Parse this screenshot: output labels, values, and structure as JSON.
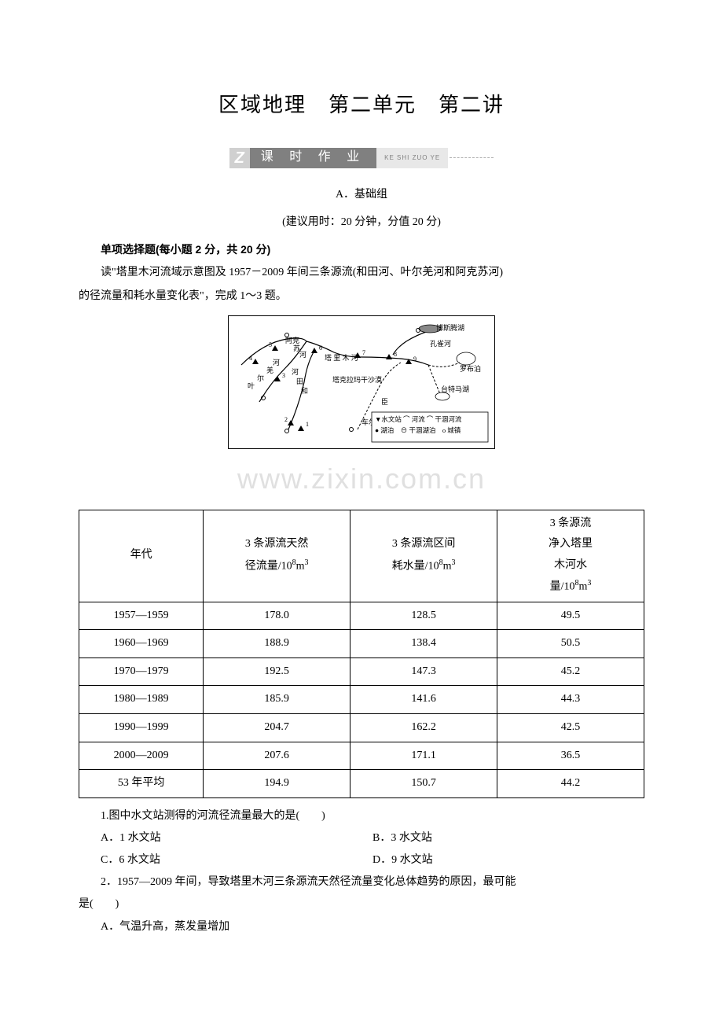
{
  "title": "区域地理　第二单元　第二讲",
  "banner": {
    "z": "Z",
    "text": "课 时 作 业",
    "pinyin": "KE SHI ZUO YE"
  },
  "group_label": "A．基础组",
  "timing": "(建议用时：20 分钟，分值 20 分)",
  "section_heading": "单项选择题(每小题 2 分，共 20 分)",
  "intro_line1": "读\"塔里木河流域示意图及 1957－2009 年间三条源流(和田河、叶尔羌河和阿克苏河)",
  "intro_line2_noindent": "的径流量和耗水量变化表\"，完成 1～3 题。",
  "watermark": "www.zixin.com.cn",
  "map_labels": {
    "bosteng": "博斯腾湖",
    "kongque": "孔雀河",
    "luobupo": "罗布泊",
    "aksu": "阿克",
    "aksu2": "苏",
    "aksu_river": "河",
    "tarim": "塔 里 木 河",
    "takla": "塔克拉玛干沙漠",
    "taitema": "台特马湖",
    "cheer": "车尔",
    "chen": "臣",
    "hetian": "河",
    "hetian2": "田",
    "hetian3": "和",
    "ye": "叶",
    "qiang": "羌",
    "he2": "河",
    "er": "尔",
    "legend_station": "▼水文站",
    "legend_river": "河流",
    "legend_dry": "干涸河流",
    "legend_lake": "湖泊",
    "legend_drylake": "干涸湖泊",
    "legend_town": "城镇"
  },
  "table": {
    "headers": [
      "年代",
      "3 条源流天然\n径流量/10⁸m³",
      "3 条源流区间\n耗水量/10⁸m³",
      "3 条源流\n净入塔里\n木河水\n量/10⁸m³"
    ],
    "col_widths": [
      "22%",
      "26%",
      "26%",
      "26%"
    ],
    "rows": [
      [
        "1957—1959",
        "178.0",
        "128.5",
        "49.5"
      ],
      [
        "1960—1969",
        "188.9",
        "138.4",
        "50.5"
      ],
      [
        "1970—1979",
        "192.5",
        "147.3",
        "45.2"
      ],
      [
        "1980—1989",
        "185.9",
        "141.6",
        "44.3"
      ],
      [
        "1990—1999",
        "204.7",
        "162.2",
        "42.5"
      ],
      [
        "2000—2009",
        "207.6",
        "171.1",
        "36.5"
      ],
      [
        "53 年平均",
        "194.9",
        "150.7",
        "44.2"
      ]
    ]
  },
  "q1": {
    "stem": "1.图中水文站测得的河流径流量最大的是(　　)",
    "A": "A．1 水文站",
    "B": "B．3 水文站",
    "C": "C．6 水文站",
    "D": "D．9 水文站"
  },
  "q2": {
    "stem1": "2．1957—2009 年间，导致塔里木河三条源流天然径流量变化总体趋势的原因，最可能",
    "stem2": "是(　　)",
    "A": "A．气温升高，蒸发量增加"
  }
}
